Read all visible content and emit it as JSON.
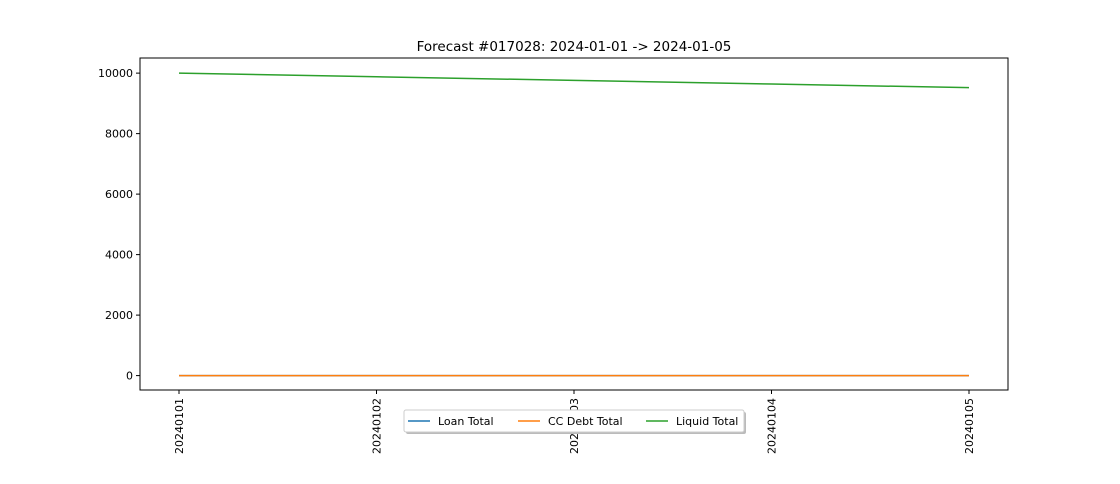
{
  "chart_data": {
    "type": "line",
    "title": "Forecast #017028: 2024-01-01 -> 2024-01-05",
    "xlabel": "",
    "ylabel": "",
    "categories": [
      "20240101",
      "20240102",
      "20240103",
      "20240104",
      "20240105"
    ],
    "series": [
      {
        "name": "Loan Total",
        "color": "#1f77b4",
        "values": [
          0,
          0,
          0,
          0,
          0
        ]
      },
      {
        "name": "CC Debt Total",
        "color": "#ff7f0e",
        "values": [
          0,
          0,
          0,
          0,
          0
        ]
      },
      {
        "name": "Liquid Total",
        "color": "#2ca02c",
        "values": [
          10000,
          9880,
          9760,
          9640,
          9520
        ]
      }
    ],
    "yticks": [
      0,
      2000,
      4000,
      6000,
      8000,
      10000
    ],
    "ylim": [
      -476,
      10500
    ],
    "grid": false,
    "legend": {
      "placement": "bottom-center",
      "columns": 3,
      "shadow": true
    }
  }
}
